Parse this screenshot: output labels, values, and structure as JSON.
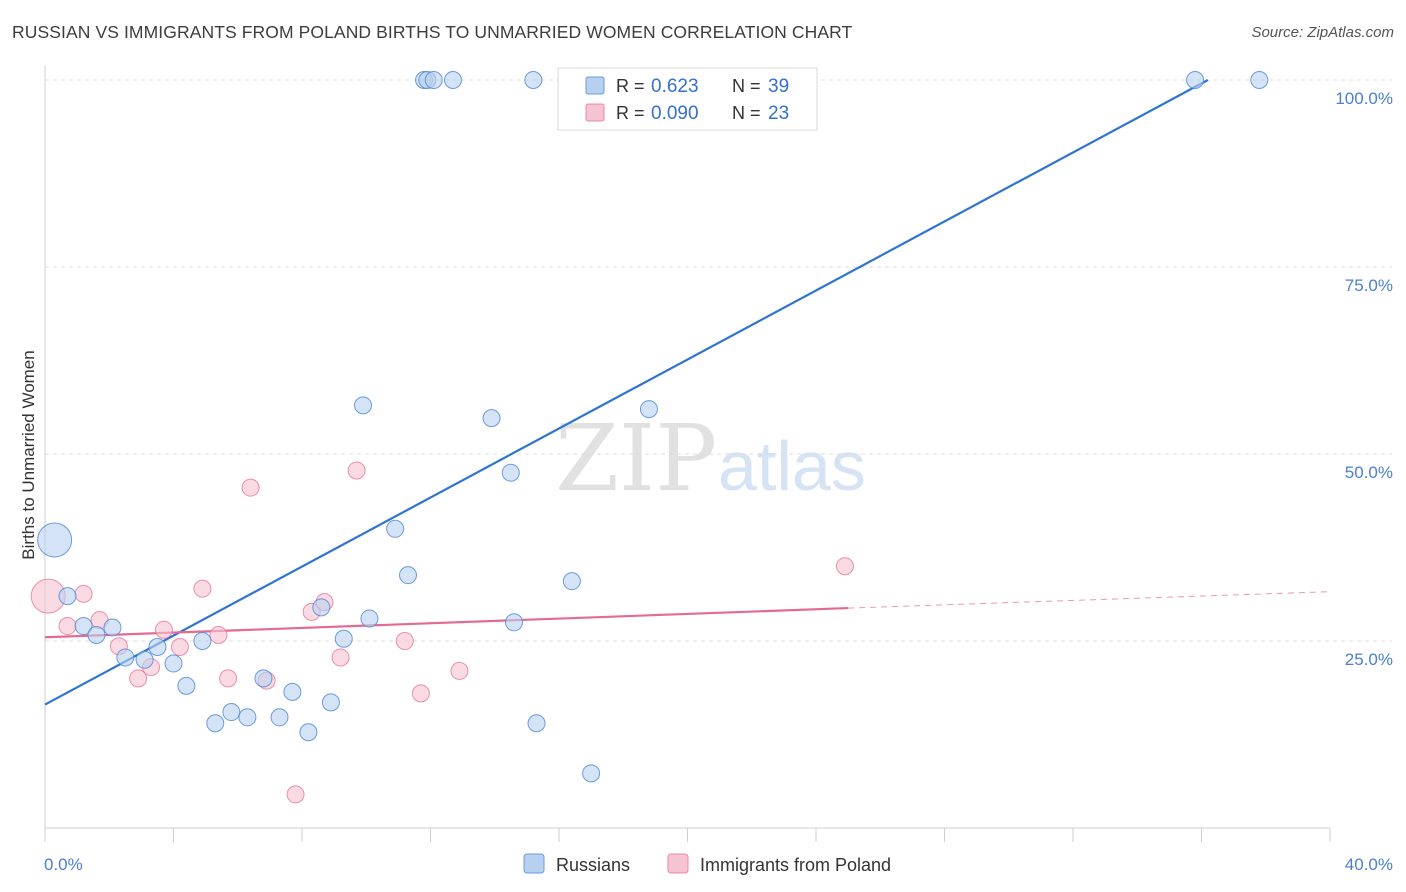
{
  "title": "RUSSIAN VS IMMIGRANTS FROM POLAND BIRTHS TO UNMARRIED WOMEN CORRELATION CHART",
  "source": "Source: ZipAtlas.com",
  "watermark": {
    "part1": "ZIP",
    "part2": "atlas"
  },
  "colors": {
    "blue": "#4a86d6",
    "blue_fill": "#b8d0f0",
    "blue_line": "#2f74d0",
    "pink": "#e8769a",
    "pink_fill": "#f6c3d2",
    "pink_line": "#e46a92",
    "axis_text": "#4a7fd0"
  },
  "chart_data": {
    "type": "scatter",
    "xlabel": "",
    "ylabel": "Births to Unmarried Women",
    "xlim": [
      0,
      40
    ],
    "ylim": [
      0,
      102
    ],
    "x_tick_labels": [
      "0.0%",
      "40.0%"
    ],
    "y_ticks": [
      25,
      50,
      75,
      100
    ],
    "y_tick_labels": [
      "25.0%",
      "50.0%",
      "75.0%",
      "100.0%"
    ],
    "grid": true,
    "legend_position": "top-center",
    "stats": [
      {
        "r_label": "R =",
        "r_value": "0.623",
        "n_label": "N =",
        "n_value": "39"
      },
      {
        "r_label": "R =",
        "r_value": "0.090",
        "n_label": "N =",
        "n_value": "23"
      }
    ],
    "series": [
      {
        "name": "Russians",
        "color": "blue",
        "trend": {
          "x": [
            0,
            36.2
          ],
          "y": [
            16.5,
            100
          ]
        },
        "points": [
          {
            "x": 0.3,
            "y": 38.5,
            "big": true
          },
          {
            "x": 0.7,
            "y": 31.0
          },
          {
            "x": 1.2,
            "y": 27.0
          },
          {
            "x": 1.6,
            "y": 25.8
          },
          {
            "x": 2.1,
            "y": 26.8
          },
          {
            "x": 2.5,
            "y": 22.8
          },
          {
            "x": 3.1,
            "y": 22.5
          },
          {
            "x": 3.5,
            "y": 24.2
          },
          {
            "x": 4.0,
            "y": 22.0
          },
          {
            "x": 4.4,
            "y": 19.0
          },
          {
            "x": 4.9,
            "y": 25.0
          },
          {
            "x": 5.3,
            "y": 14.0
          },
          {
            "x": 5.8,
            "y": 15.5
          },
          {
            "x": 6.3,
            "y": 14.8
          },
          {
            "x": 6.8,
            "y": 20.0
          },
          {
            "x": 7.3,
            "y": 14.8
          },
          {
            "x": 7.7,
            "y": 18.2
          },
          {
            "x": 8.2,
            "y": 12.8
          },
          {
            "x": 8.6,
            "y": 29.5
          },
          {
            "x": 8.9,
            "y": 16.8
          },
          {
            "x": 9.3,
            "y": 25.3
          },
          {
            "x": 9.9,
            "y": 56.5
          },
          {
            "x": 10.1,
            "y": 28.0
          },
          {
            "x": 10.9,
            "y": 40.0
          },
          {
            "x": 11.3,
            "y": 33.8
          },
          {
            "x": 11.8,
            "y": 100.0
          },
          {
            "x": 11.9,
            "y": 100.0
          },
          {
            "x": 12.1,
            "y": 100.0
          },
          {
            "x": 12.7,
            "y": 100.0
          },
          {
            "x": 13.9,
            "y": 54.8
          },
          {
            "x": 14.5,
            "y": 47.5
          },
          {
            "x": 15.2,
            "y": 100.0
          },
          {
            "x": 15.3,
            "y": 14.0
          },
          {
            "x": 14.6,
            "y": 27.5
          },
          {
            "x": 16.4,
            "y": 33.0
          },
          {
            "x": 17.0,
            "y": 7.3
          },
          {
            "x": 18.8,
            "y": 56.0
          },
          {
            "x": 35.8,
            "y": 100.0
          },
          {
            "x": 37.8,
            "y": 100.0
          }
        ]
      },
      {
        "name": "Immigrants from Poland",
        "color": "pink",
        "trend": {
          "x": [
            0,
            25
          ],
          "y": [
            25.5,
            29.4
          ]
        },
        "trend_dashed": {
          "x": [
            25,
            40
          ],
          "y": [
            29.4,
            31.6
          ]
        },
        "points": [
          {
            "x": 0.1,
            "y": 31.0,
            "big": true
          },
          {
            "x": 0.7,
            "y": 27.0
          },
          {
            "x": 1.2,
            "y": 31.3
          },
          {
            "x": 1.7,
            "y": 27.8
          },
          {
            "x": 2.3,
            "y": 24.3
          },
          {
            "x": 2.9,
            "y": 20.0
          },
          {
            "x": 3.3,
            "y": 21.5
          },
          {
            "x": 3.7,
            "y": 26.5
          },
          {
            "x": 4.2,
            "y": 24.2
          },
          {
            "x": 4.9,
            "y": 32.0
          },
          {
            "x": 5.4,
            "y": 25.8
          },
          {
            "x": 5.7,
            "y": 20.0
          },
          {
            "x": 6.4,
            "y": 45.5
          },
          {
            "x": 6.9,
            "y": 19.7
          },
          {
            "x": 7.8,
            "y": 4.5
          },
          {
            "x": 8.3,
            "y": 28.9
          },
          {
            "x": 8.7,
            "y": 30.2
          },
          {
            "x": 9.2,
            "y": 22.8
          },
          {
            "x": 9.7,
            "y": 47.8
          },
          {
            "x": 11.2,
            "y": 25.0
          },
          {
            "x": 11.7,
            "y": 18.0
          },
          {
            "x": 12.9,
            "y": 21.0
          },
          {
            "x": 24.9,
            "y": 35.0
          }
        ]
      }
    ]
  }
}
